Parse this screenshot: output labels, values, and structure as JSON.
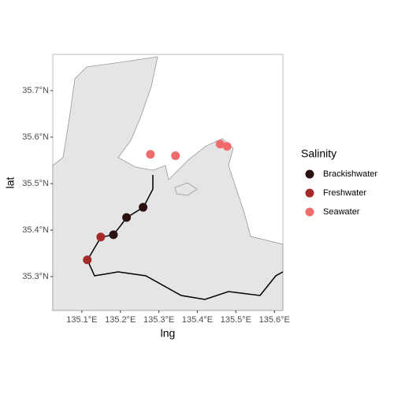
{
  "chart_data": {
    "type": "scatter",
    "x_label": "lng",
    "y_label": "lat",
    "legend_title": "Salinity",
    "legend": "right",
    "xlim": [
      135.0245,
      135.622
    ],
    "ylim": [
      35.227,
      35.778
    ],
    "xticks": [
      {
        "value": 135.1,
        "label": "135.1°E"
      },
      {
        "value": 135.2,
        "label": "135.2°E"
      },
      {
        "value": 135.3,
        "label": "135.3°E"
      },
      {
        "value": 135.4,
        "label": "135.4°E"
      },
      {
        "value": 135.5,
        "label": "135.5°E"
      },
      {
        "value": 135.6,
        "label": "135.6°E"
      }
    ],
    "yticks": [
      {
        "value": 35.3,
        "label": "35.3°N"
      },
      {
        "value": 35.4,
        "label": "35.4°N"
      },
      {
        "value": 35.5,
        "label": "35.5°N"
      },
      {
        "value": 35.6,
        "label": "35.6°N"
      },
      {
        "value": 35.7,
        "label": "35.7°N"
      }
    ],
    "series": [
      {
        "name": "Brackishwater",
        "color": "#2b1010",
        "x": [
          135.259,
          135.216,
          135.182
        ],
        "values": [
          35.449,
          35.427,
          35.39
        ]
      },
      {
        "name": "Freshwater",
        "color": "#a62a2a",
        "x": [
          135.149,
          135.114
        ],
        "values": [
          35.385,
          35.336
        ]
      },
      {
        "name": "Seawater",
        "color": "#f06c6c",
        "x": [
          135.278,
          135.343,
          135.459,
          135.477
        ],
        "values": [
          35.563,
          35.56,
          35.585,
          35.58
        ]
      }
    ]
  }
}
